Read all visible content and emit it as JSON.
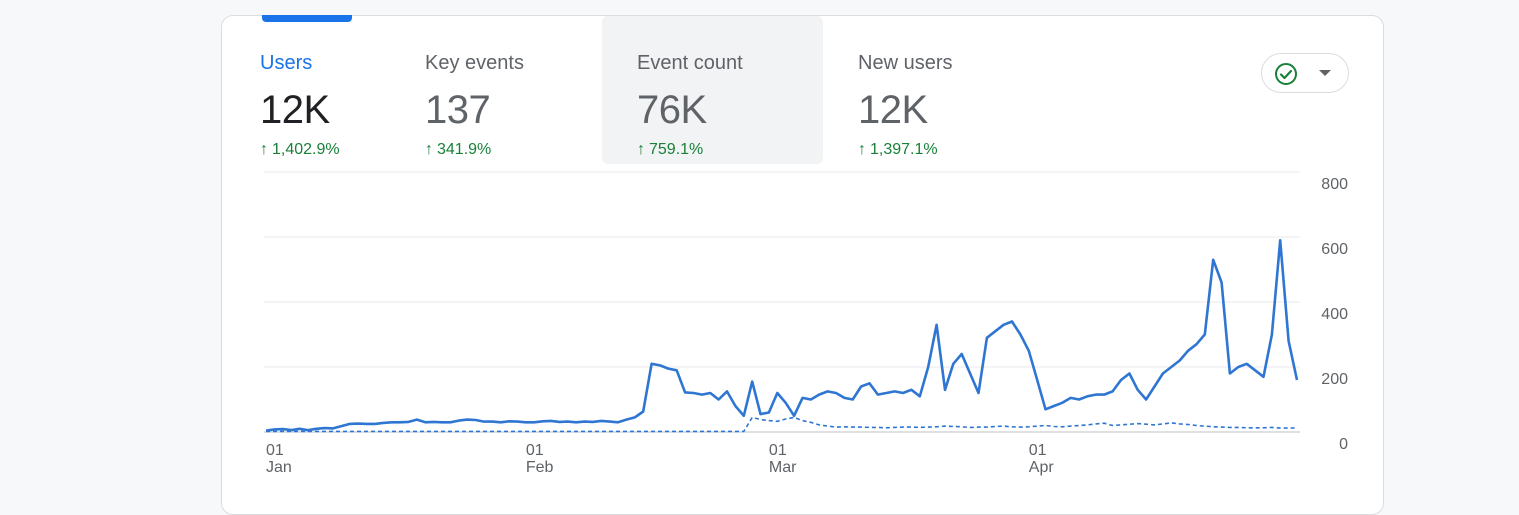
{
  "metrics": [
    {
      "label": "Users",
      "value": "12K",
      "change": "1,402.9%",
      "active": true
    },
    {
      "label": "Key events",
      "value": "137",
      "change": "341.9%"
    },
    {
      "label": "Event count",
      "value": "76K",
      "change": "759.1%",
      "highlighted": true
    },
    {
      "label": "New users",
      "value": "12K",
      "change": "1,397.1%"
    }
  ],
  "compare_button": {
    "icon": "check-circle-icon",
    "dropdown_icon": "caret-down-icon"
  },
  "colors": {
    "accent": "#1a73e8",
    "positive": "#188038",
    "series": "#2f76d2"
  },
  "chart_data": {
    "type": "line",
    "ylim": [
      0,
      800
    ],
    "y_ticks": [
      "0",
      "200",
      "400",
      "600",
      "800"
    ],
    "x_ticks": [
      {
        "day": "01",
        "month": "Jan"
      },
      {
        "day": "01",
        "month": "Feb"
      },
      {
        "day": "01",
        "month": "Mar"
      },
      {
        "day": "01",
        "month": "Apr"
      }
    ],
    "grid": true,
    "series": [
      {
        "style": "solid",
        "values": [
          4,
          8,
          9,
          6,
          10,
          6,
          10,
          12,
          11,
          18,
          25,
          26,
          25,
          25,
          28,
          30,
          30,
          31,
          38,
          30,
          31,
          30,
          30,
          35,
          38,
          37,
          32,
          32,
          30,
          33,
          32,
          30,
          30,
          33,
          34,
          31,
          32,
          30,
          32,
          31,
          34,
          32,
          30,
          38,
          45,
          63,
          210,
          205,
          195,
          190,
          122,
          120,
          115,
          120,
          100,
          125,
          80,
          50,
          155,
          55,
          60,
          120,
          90,
          50,
          105,
          100,
          115,
          125,
          120,
          105,
          100,
          140,
          150,
          115,
          120,
          125,
          120,
          130,
          110,
          200,
          330,
          130,
          210,
          240,
          180,
          120,
          290,
          310,
          330,
          340,
          300,
          250,
          160,
          70,
          80,
          90,
          105,
          100,
          110,
          115,
          115,
          125,
          160,
          180,
          130,
          100,
          140,
          180,
          200,
          220,
          250,
          270,
          300,
          530,
          460,
          180,
          200,
          210,
          190,
          170,
          300,
          590,
          280,
          160
        ]
      },
      {
        "style": "dashed",
        "values": [
          2,
          2,
          2,
          2,
          2,
          2,
          2,
          2,
          2,
          2,
          2,
          2,
          2,
          2,
          2,
          2,
          2,
          2,
          2,
          2,
          2,
          2,
          2,
          2,
          2,
          2,
          2,
          2,
          2,
          2,
          2,
          2,
          2,
          2,
          2,
          2,
          2,
          2,
          2,
          2,
          2,
          2,
          2,
          2,
          2,
          2,
          2,
          2,
          2,
          2,
          2,
          2,
          2,
          2,
          2,
          2,
          2,
          2,
          45,
          38,
          35,
          33,
          40,
          45,
          35,
          30,
          22,
          18,
          15,
          16,
          15,
          15,
          14,
          14,
          13,
          14,
          15,
          15,
          14,
          15,
          16,
          18,
          17,
          16,
          14,
          15,
          15,
          17,
          18,
          16,
          15,
          16,
          18,
          20,
          17,
          16,
          18,
          20,
          22,
          25,
          27,
          20,
          22,
          24,
          26,
          24,
          22,
          25,
          28,
          25,
          23,
          20,
          18,
          16,
          15,
          14,
          14,
          13,
          13,
          13,
          14,
          12,
          12,
          13
        ]
      }
    ]
  }
}
